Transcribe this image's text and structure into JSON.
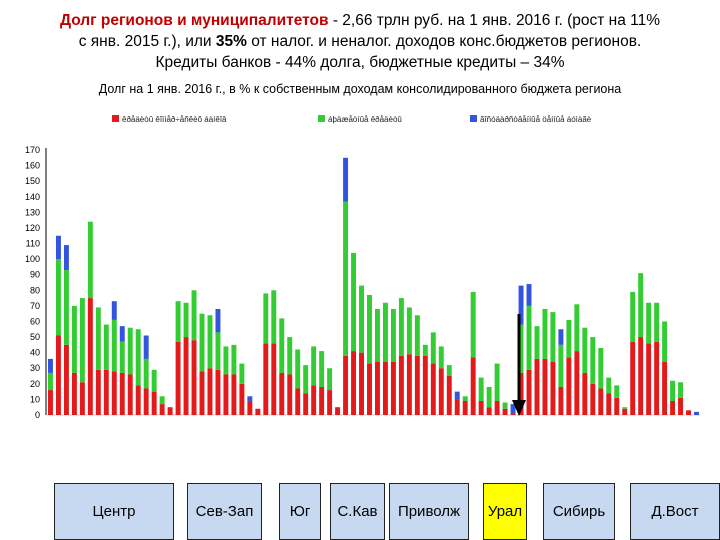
{
  "title": {
    "line1_a": "Долг регионов и муниципалитетов",
    "line1_b": " - 2,66 трлн руб. на 1 янв. 2016 г. (рост на 11%",
    "line2_a": "с янв. 2015 г.), или ",
    "line2_em": "35%",
    "line2_b": " от налог. и неналог. доходов конс.бюджетов регионов.",
    "line3": "Кредиты банков - 44% долга, бюджетные кредиты – 34%"
  },
  "subtitle": "Долг на 1 янв. 2016 г., в % к собственным доходам консолидированного бюджета региона",
  "federal_districts": [
    {
      "label": "Центр",
      "selected": false
    },
    {
      "label": "Сев-Зап",
      "selected": false
    },
    {
      "label": "Юг",
      "selected": false
    },
    {
      "label": "С.Кав",
      "selected": false
    },
    {
      "label": "Приволж",
      "selected": false
    },
    {
      "label": "Урал",
      "selected": true
    },
    {
      "label": "Сибирь",
      "selected": false
    },
    {
      "label": "Д.Вост",
      "selected": false
    }
  ],
  "colors": {
    "bank": "#e31a1c",
    "budget": "#33cc33",
    "other": "#3355dd",
    "arrow": "#000000",
    "selected_district": "#ffff00",
    "district": "#c6d9f1"
  },
  "chart_data": {
    "type": "bar",
    "stacked": true,
    "ylim": [
      0,
      170
    ],
    "ytick_step": 10,
    "grid": false,
    "legend_placement": "top",
    "series": [
      {
        "name": "êðåäèòû êîììåð÷åñêèõ áàíêîâ",
        "color": "#e31a1c",
        "values": [
          16,
          51,
          45,
          27,
          21,
          75,
          29,
          29,
          28,
          27,
          26,
          19,
          17,
          15,
          7,
          5,
          47,
          50,
          48,
          28,
          30,
          29,
          26,
          26,
          20,
          9,
          4,
          46,
          46,
          27,
          26,
          17,
          14,
          19,
          18,
          16,
          5,
          38,
          41,
          40,
          33,
          34,
          34,
          34,
          38,
          39,
          38,
          38,
          33,
          30,
          25,
          10,
          9,
          37,
          9,
          5,
          9,
          4,
          1,
          27,
          29,
          36,
          36,
          34,
          18,
          37,
          41,
          27,
          20,
          17,
          14,
          11,
          4,
          47,
          50,
          46,
          47,
          34,
          9,
          11,
          3,
          0
        ]
      },
      {
        "name": "áþäæåòíûå êðåäèòû",
        "color": "#33cc33",
        "values": [
          11,
          49,
          48,
          43,
          54,
          49,
          40,
          29,
          33,
          20,
          30,
          36,
          19,
          14,
          5,
          0,
          26,
          22,
          32,
          37,
          34,
          24,
          18,
          19,
          13,
          0,
          0,
          32,
          34,
          35,
          24,
          25,
          18,
          25,
          23,
          14,
          0,
          99,
          63,
          43,
          44,
          34,
          38,
          34,
          37,
          30,
          26,
          7,
          20,
          14,
          7,
          0,
          3,
          42,
          15,
          13,
          24,
          4,
          0,
          31,
          41,
          21,
          32,
          32,
          27,
          24,
          30,
          29,
          30,
          26,
          10,
          8,
          1,
          32,
          41,
          26,
          25,
          26,
          13,
          10,
          0,
          0
        ]
      },
      {
        "name": "ãîñóäàðñòâåííûå öåííûå áóìàãè",
        "color": "#3355dd",
        "values": [
          9,
          15,
          16,
          0,
          0,
          0,
          0,
          0,
          12,
          10,
          0,
          0,
          15,
          0,
          0,
          0,
          0,
          0,
          0,
          0,
          0,
          15,
          0,
          0,
          0,
          3,
          0,
          0,
          0,
          0,
          0,
          0,
          0,
          0,
          0,
          0,
          0,
          28,
          0,
          0,
          0,
          0,
          0,
          0,
          0,
          0,
          0,
          0,
          0,
          0,
          0,
          5,
          0,
          0,
          0,
          0,
          0,
          0,
          6,
          25,
          14,
          0,
          0,
          0,
          10,
          0,
          0,
          0,
          0,
          0,
          0,
          0,
          0,
          0,
          0,
          0,
          0,
          0,
          0,
          0,
          0,
          2
        ]
      }
    ]
  }
}
